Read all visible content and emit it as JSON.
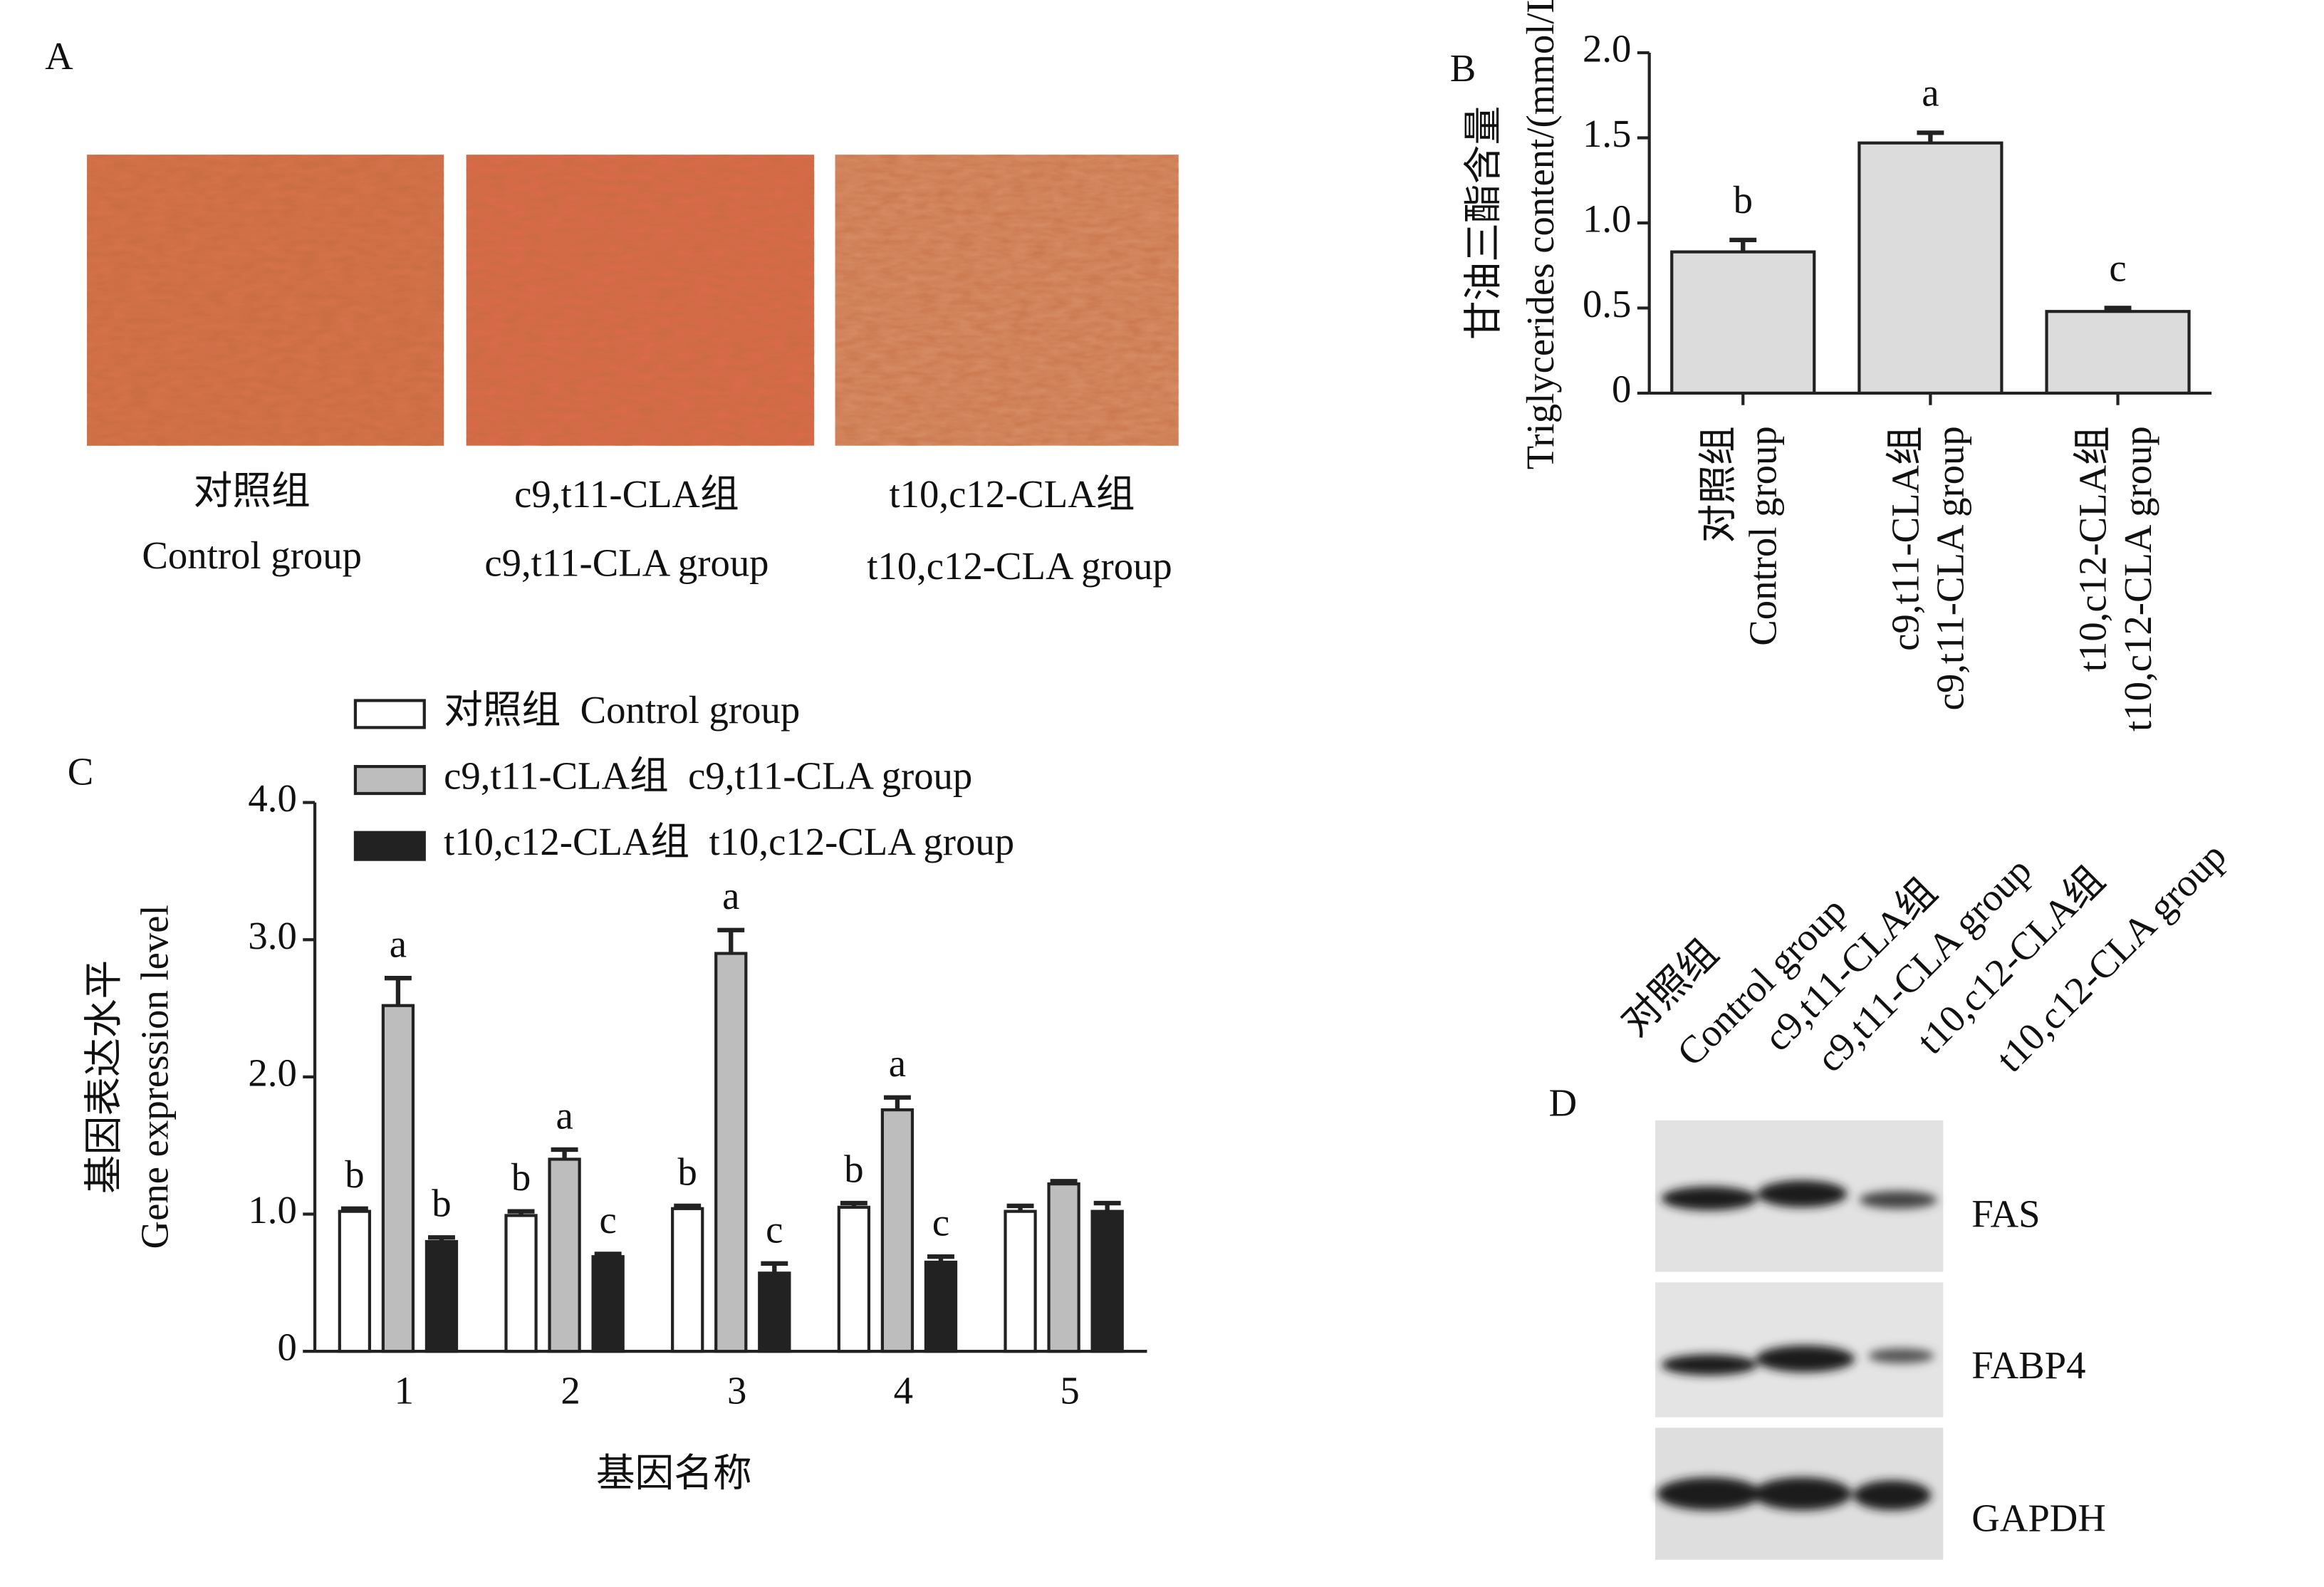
{
  "panel_labels": [
    "A",
    "B",
    "C",
    "D"
  ],
  "panel_a": {
    "captions": [
      [
        "对照组",
        "Control group"
      ],
      [
        "c9,t11-CLA组",
        "c9,t11-CLA group"
      ],
      [
        "t10,c12-CLA组",
        "t10,c12-CLA group"
      ]
    ]
  },
  "chart_data": [
    {
      "type": "bar",
      "ylabel": [
        "甘油三酯含量",
        "Triglycerides content/(mmol/L)"
      ],
      "categories": [
        [
          "对照组",
          "Control group"
        ],
        [
          "c9,t11-CLA组",
          "c9,t11-CLA group"
        ],
        [
          "t10,c12-CLA组",
          "t10,c12-CLA group"
        ]
      ],
      "values": [
        0.83,
        1.47,
        0.48
      ],
      "errors": [
        0.07,
        0.06,
        0.02
      ],
      "letters": [
        "b",
        "a",
        "c"
      ],
      "color": "#dcdcdc",
      "ylim": [
        0,
        2.0
      ],
      "yticks": [
        0,
        {
          "value": 0.5,
          "label": "0.5"
        },
        {
          "value": 1.0,
          "label": "1.0"
        },
        {
          "value": 1.5,
          "label": "1.5"
        },
        {
          "value": 2.0,
          "label": "2.0"
        }
      ]
    },
    {
      "type": "grouped_bar",
      "ylabel": [
        "基因表达水平",
        "Gene expression level"
      ],
      "xlabel": "基因名称",
      "categories": [
        "1",
        "2",
        "3",
        "4",
        "5"
      ],
      "series": [
        {
          "name": "对照组  Control group",
          "color": "#ffffff",
          "values": [
            1.02,
            0.99,
            1.04,
            1.05,
            1.02
          ],
          "errors": [
            0.02,
            0.03,
            0.02,
            0.03,
            0.04
          ],
          "letters": [
            "b",
            "b",
            "b",
            "b",
            null
          ]
        },
        {
          "name": "c9,t11-CLA组  c9,t11-CLA group",
          "color": "#bdbdbd",
          "values": [
            2.52,
            1.4,
            2.9,
            1.76,
            1.22
          ],
          "errors": [
            0.2,
            0.07,
            0.17,
            0.09,
            0.02
          ],
          "letters": [
            "a",
            "a",
            "a",
            "a",
            null
          ]
        },
        {
          "name": "t10,c12-CLA组  t10,c12-CLA group",
          "color": "#222222",
          "values": [
            0.8,
            0.69,
            0.57,
            0.65,
            1.02
          ],
          "errors": [
            0.03,
            0.02,
            0.07,
            0.04,
            0.06
          ],
          "letters": [
            "b",
            "c",
            "c",
            "c",
            null
          ]
        }
      ],
      "ylim": [
        0,
        4.0
      ],
      "yticks": [
        0,
        {
          "value": 1.0,
          "label": "1.0"
        },
        {
          "value": 2.0,
          "label": "2.0"
        },
        {
          "value": 3.0,
          "label": "3.0"
        },
        {
          "value": 4.0,
          "label": "4.0"
        }
      ]
    }
  ],
  "panel_d": {
    "lanes": [
      "对照组",
      "Control group",
      "c9,t11-CLA组",
      "c9,t11-CLA group",
      "t10,c12-CLA组",
      "t10,c12-CLA group"
    ],
    "proteins": [
      "FAS",
      "FABP4",
      "GAPDH"
    ]
  }
}
